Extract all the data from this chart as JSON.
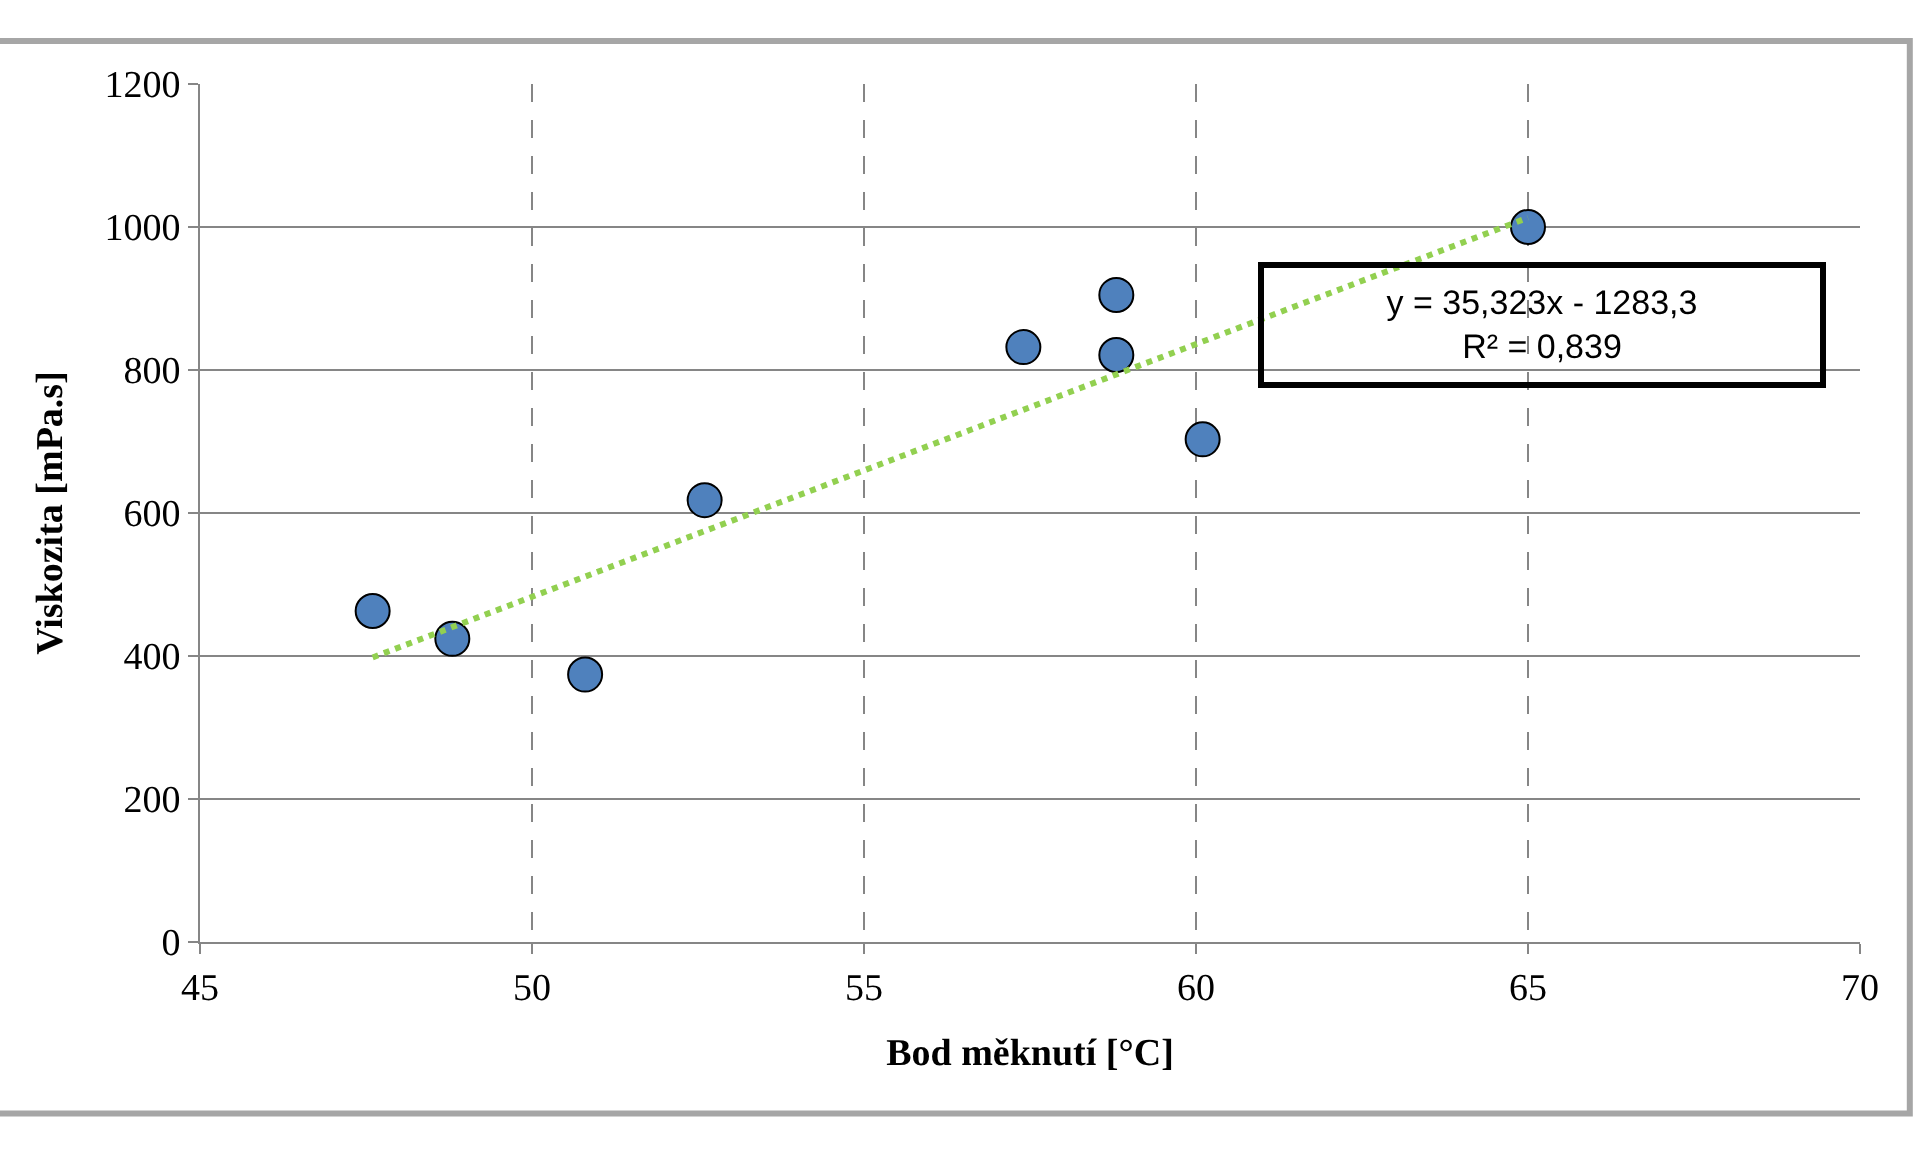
{
  "chart_data": {
    "type": "scatter",
    "xlabel": "Bod měknutí [°C]",
    "ylabel": "Viskozita [mPa.s]",
    "xlim": [
      45,
      70
    ],
    "xticks": [
      45,
      50,
      55,
      60,
      65,
      70
    ],
    "ylim": [
      0,
      1200
    ],
    "yticks": [
      0,
      200,
      400,
      600,
      800,
      1000,
      1200
    ],
    "grid": true,
    "marker": "circle",
    "series": [
      {
        "color": "#4f81bd",
        "x": [
          47.6,
          48.8,
          50.8,
          52.6,
          57.4,
          58.8,
          58.8,
          60.1,
          65.0
        ],
        "values": [
          463,
          424,
          374,
          618,
          832,
          905,
          821,
          703,
          1000
        ]
      },
      {
        "type": "line",
        "color": "#92d050",
        "line_style": "dotted",
        "marker": "none",
        "x": [
          47.6,
          65.0
        ],
        "values": [
          398,
          1013
        ]
      }
    ],
    "annotations": [
      "y = 35,323x - 1283,3",
      "R² = 0,839"
    ]
  }
}
